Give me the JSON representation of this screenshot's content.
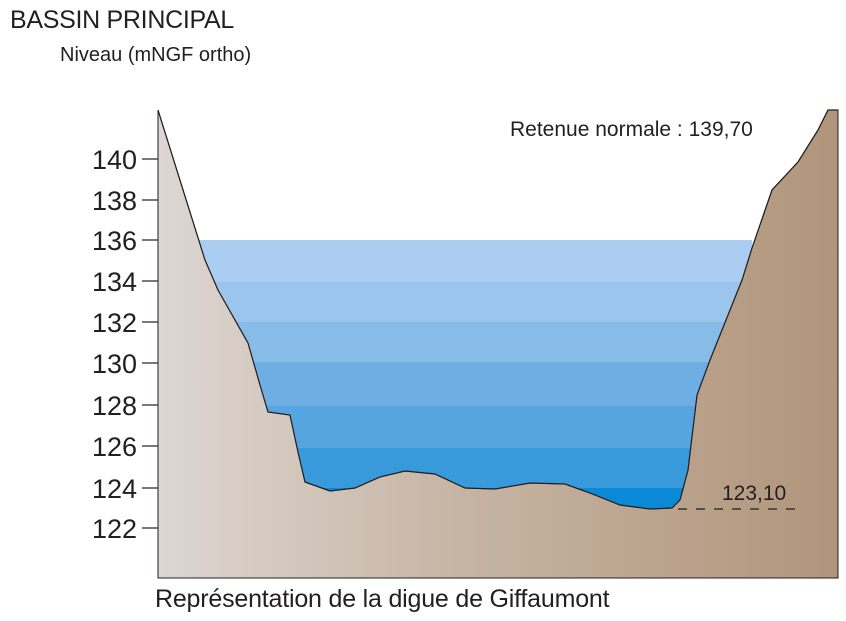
{
  "title": "BASSIN PRINCIPAL",
  "subtitle": "Niveau (mNGF ortho)",
  "caption": "Représentation de la digue de Giffaumont",
  "axis": {
    "ticks": [
      "140",
      "138",
      "136",
      "134",
      "132",
      "130",
      "128",
      "126",
      "124",
      "122"
    ]
  },
  "annotations": {
    "retenue": "Retenue normale : 139,70",
    "bottom": "123,10"
  },
  "colors": {
    "water_top": "#a9cbef",
    "water_bottom": "#0088d6",
    "ground_left": "#ddd6d2",
    "ground_right": "#b49a80",
    "outline": "#231f20"
  }
}
